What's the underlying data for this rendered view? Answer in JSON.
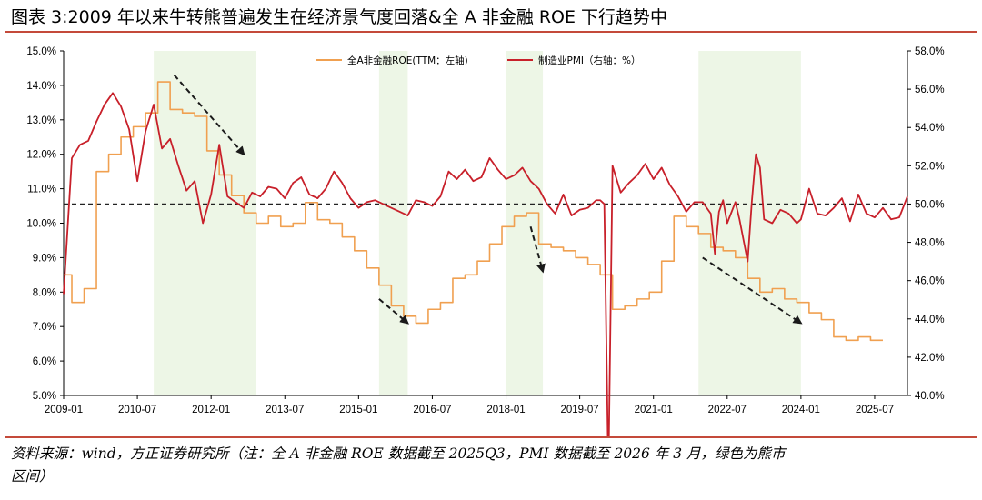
{
  "header": {
    "title": "图表 3:2009 年以来牛转熊普遍发生在经济景气度回落&全 A 非金融 ROE 下行趋势中"
  },
  "footer": {
    "source_line1": "资料来源：wind，方正证券研究所（注：全 A 非金融 ROE 数据截至 2025Q3，PMI 数据截至 2026 年 3 月，绿色为熊市",
    "source_line2": "区间）"
  },
  "colors": {
    "roe": "#f0a050",
    "pmi": "#c8202a",
    "bear_shade": "#edf6e6",
    "arrow": "#1a1a1a",
    "title_rule": "#c44a3a"
  },
  "chart_data": {
    "type": "line",
    "x_range": [
      "2009-01",
      "2026-03"
    ],
    "x_ticks": [
      "2009-01",
      "2010-07",
      "2012-01",
      "2013-07",
      "2015-01",
      "2016-07",
      "2018-01",
      "2019-07",
      "2021-01",
      "2022-07",
      "2024-01",
      "2025-07"
    ],
    "y_left": {
      "label": "",
      "range": [
        5,
        15
      ],
      "ticks": [
        "5.0%",
        "6.0%",
        "7.0%",
        "8.0%",
        "9.0%",
        "10.0%",
        "11.0%",
        "12.0%",
        "13.0%",
        "14.0%",
        "15.0%"
      ]
    },
    "y_right": {
      "label": "",
      "range": [
        40,
        58
      ],
      "ticks": [
        "40.0%",
        "42.0%",
        "44.0%",
        "46.0%",
        "48.0%",
        "50.0%",
        "52.0%",
        "54.0%",
        "56.0%",
        "58.0%"
      ]
    },
    "reference_line": {
      "axis": "right",
      "value": 50,
      "style": "dashed"
    },
    "legend": {
      "placement": "top-center"
    },
    "bear_markets": [
      [
        "2010-11",
        "2012-12"
      ],
      [
        "2015-06",
        "2016-01"
      ],
      [
        "2018-01",
        "2018-10"
      ],
      [
        "2021-12",
        "2024-01"
      ]
    ],
    "trend_arrows": [
      {
        "from": [
          "2011-04",
          14.3
        ],
        "to": [
          "2012-09",
          12.0
        ]
      },
      {
        "from": [
          "2015-06",
          7.8
        ],
        "to": [
          "2016-01",
          7.1
        ]
      },
      {
        "from": [
          "2018-07",
          9.9
        ],
        "to": [
          "2018-10",
          8.6
        ]
      },
      {
        "from": [
          "2022-01",
          9.0
        ],
        "to": [
          "2024-01",
          7.1
        ]
      }
    ],
    "series": [
      {
        "name": "全A非金融ROE(TTM：左轴)",
        "axis": "left",
        "step": true,
        "points": [
          [
            "2009-01",
            8.5
          ],
          [
            "2009-03",
            7.7
          ],
          [
            "2009-06",
            8.1
          ],
          [
            "2009-09",
            11.5
          ],
          [
            "2009-12",
            12.0
          ],
          [
            "2010-03",
            12.5
          ],
          [
            "2010-06",
            12.8
          ],
          [
            "2010-09",
            13.2
          ],
          [
            "2010-12",
            14.1
          ],
          [
            "2011-03",
            13.3
          ],
          [
            "2011-06",
            13.2
          ],
          [
            "2011-09",
            13.1
          ],
          [
            "2011-12",
            12.1
          ],
          [
            "2012-03",
            11.4
          ],
          [
            "2012-06",
            10.8
          ],
          [
            "2012-09",
            10.3
          ],
          [
            "2012-12",
            10.0
          ],
          [
            "2013-03",
            10.2
          ],
          [
            "2013-06",
            9.9
          ],
          [
            "2013-09",
            10.0
          ],
          [
            "2013-12",
            10.6
          ],
          [
            "2014-03",
            10.1
          ],
          [
            "2014-06",
            10.0
          ],
          [
            "2014-09",
            9.6
          ],
          [
            "2014-12",
            9.2
          ],
          [
            "2015-03",
            8.7
          ],
          [
            "2015-06",
            8.2
          ],
          [
            "2015-09",
            7.6
          ],
          [
            "2015-12",
            7.3
          ],
          [
            "2016-03",
            7.1
          ],
          [
            "2016-06",
            7.5
          ],
          [
            "2016-09",
            7.7
          ],
          [
            "2016-12",
            8.4
          ],
          [
            "2017-03",
            8.5
          ],
          [
            "2017-06",
            8.9
          ],
          [
            "2017-09",
            9.4
          ],
          [
            "2017-12",
            9.9
          ],
          [
            "2018-03",
            10.2
          ],
          [
            "2018-06",
            10.3
          ],
          [
            "2018-09",
            9.4
          ],
          [
            "2018-12",
            9.3
          ],
          [
            "2019-03",
            9.2
          ],
          [
            "2019-06",
            9.0
          ],
          [
            "2019-09",
            8.8
          ],
          [
            "2019-12",
            8.5
          ],
          [
            "2020-03",
            7.5
          ],
          [
            "2020-06",
            7.6
          ],
          [
            "2020-09",
            7.8
          ],
          [
            "2020-12",
            8.0
          ],
          [
            "2021-03",
            8.9
          ],
          [
            "2021-06",
            10.2
          ],
          [
            "2021-09",
            9.9
          ],
          [
            "2021-12",
            9.7
          ],
          [
            "2022-03",
            9.3
          ],
          [
            "2022-06",
            9.2
          ],
          [
            "2022-09",
            9.0
          ],
          [
            "2022-12",
            8.4
          ],
          [
            "2023-03",
            8.0
          ],
          [
            "2023-06",
            8.1
          ],
          [
            "2023-09",
            7.8
          ],
          [
            "2023-12",
            7.7
          ],
          [
            "2024-03",
            7.4
          ],
          [
            "2024-06",
            7.2
          ],
          [
            "2024-09",
            6.7
          ],
          [
            "2024-12",
            6.6
          ],
          [
            "2025-03",
            6.7
          ],
          [
            "2025-06",
            6.6
          ],
          [
            "2025-09",
            6.6
          ]
        ]
      },
      {
        "name": "制造业PMI（右轴：%）",
        "axis": "right",
        "step": false,
        "points": [
          [
            "2009-01",
            45.3
          ],
          [
            "2009-03",
            52.4
          ],
          [
            "2009-05",
            53.1
          ],
          [
            "2009-07",
            53.3
          ],
          [
            "2009-09",
            54.3
          ],
          [
            "2009-11",
            55.2
          ],
          [
            "2010-01",
            55.8
          ],
          [
            "2010-03",
            55.1
          ],
          [
            "2010-05",
            53.9
          ],
          [
            "2010-07",
            51.2
          ],
          [
            "2010-09",
            53.8
          ],
          [
            "2010-11",
            55.2
          ],
          [
            "2011-01",
            52.9
          ],
          [
            "2011-03",
            53.4
          ],
          [
            "2011-05",
            52.0
          ],
          [
            "2011-07",
            50.7
          ],
          [
            "2011-09",
            51.2
          ],
          [
            "2011-11",
            49.0
          ],
          [
            "2012-01",
            50.5
          ],
          [
            "2012-03",
            53.1
          ],
          [
            "2012-05",
            50.4
          ],
          [
            "2012-07",
            50.1
          ],
          [
            "2012-09",
            49.8
          ],
          [
            "2012-11",
            50.6
          ],
          [
            "2013-01",
            50.4
          ],
          [
            "2013-03",
            50.9
          ],
          [
            "2013-05",
            50.8
          ],
          [
            "2013-07",
            50.3
          ],
          [
            "2013-09",
            51.1
          ],
          [
            "2013-11",
            51.4
          ],
          [
            "2014-01",
            50.5
          ],
          [
            "2014-03",
            50.3
          ],
          [
            "2014-05",
            50.8
          ],
          [
            "2014-07",
            51.7
          ],
          [
            "2014-09",
            51.1
          ],
          [
            "2014-11",
            50.3
          ],
          [
            "2015-01",
            49.8
          ],
          [
            "2015-03",
            50.1
          ],
          [
            "2015-05",
            50.2
          ],
          [
            "2015-07",
            50.0
          ],
          [
            "2015-09",
            49.8
          ],
          [
            "2015-11",
            49.6
          ],
          [
            "2016-01",
            49.4
          ],
          [
            "2016-03",
            50.2
          ],
          [
            "2016-05",
            50.1
          ],
          [
            "2016-07",
            49.9
          ],
          [
            "2016-09",
            50.4
          ],
          [
            "2016-11",
            51.7
          ],
          [
            "2017-01",
            51.3
          ],
          [
            "2017-03",
            51.8
          ],
          [
            "2017-05",
            51.2
          ],
          [
            "2017-07",
            51.4
          ],
          [
            "2017-09",
            52.4
          ],
          [
            "2017-11",
            51.8
          ],
          [
            "2018-01",
            51.3
          ],
          [
            "2018-03",
            51.5
          ],
          [
            "2018-05",
            51.9
          ],
          [
            "2018-07",
            51.2
          ],
          [
            "2018-09",
            50.8
          ],
          [
            "2018-11",
            50.0
          ],
          [
            "2019-01",
            49.5
          ],
          [
            "2019-03",
            50.5
          ],
          [
            "2019-05",
            49.4
          ],
          [
            "2019-07",
            49.7
          ],
          [
            "2019-09",
            49.8
          ],
          [
            "2019-11",
            50.2
          ],
          [
            "2019-12",
            50.2
          ],
          [
            "2020-01",
            50.0
          ],
          [
            "2020-02",
            35.7
          ],
          [
            "2020-03",
            52.0
          ],
          [
            "2020-05",
            50.6
          ],
          [
            "2020-07",
            51.1
          ],
          [
            "2020-09",
            51.5
          ],
          [
            "2020-11",
            52.1
          ],
          [
            "2021-01",
            51.3
          ],
          [
            "2021-03",
            51.9
          ],
          [
            "2021-05",
            51.0
          ],
          [
            "2021-07",
            50.4
          ],
          [
            "2021-09",
            49.6
          ],
          [
            "2021-11",
            50.1
          ],
          [
            "2022-01",
            50.1
          ],
          [
            "2022-03",
            49.5
          ],
          [
            "2022-04",
            47.4
          ],
          [
            "2022-05",
            49.6
          ],
          [
            "2022-06",
            50.2
          ],
          [
            "2022-07",
            49.0
          ],
          [
            "2022-09",
            50.1
          ],
          [
            "2022-10",
            49.2
          ],
          [
            "2022-12",
            47.0
          ],
          [
            "2023-01",
            50.1
          ],
          [
            "2023-02",
            52.6
          ],
          [
            "2023-03",
            51.9
          ],
          [
            "2023-04",
            49.2
          ],
          [
            "2023-06",
            49.0
          ],
          [
            "2023-08",
            49.7
          ],
          [
            "2023-10",
            49.5
          ],
          [
            "2023-12",
            49.0
          ],
          [
            "2024-01",
            49.2
          ],
          [
            "2024-03",
            50.8
          ],
          [
            "2024-05",
            49.5
          ],
          [
            "2024-07",
            49.4
          ],
          [
            "2024-09",
            49.8
          ],
          [
            "2024-11",
            50.3
          ],
          [
            "2025-01",
            49.1
          ],
          [
            "2025-03",
            50.5
          ],
          [
            "2025-05",
            49.5
          ],
          [
            "2025-07",
            49.3
          ],
          [
            "2025-09",
            49.8
          ],
          [
            "2025-11",
            49.2
          ],
          [
            "2026-01",
            49.3
          ],
          [
            "2026-03",
            50.4
          ]
        ]
      }
    ]
  }
}
